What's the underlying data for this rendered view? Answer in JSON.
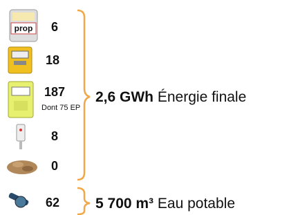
{
  "items": [
    {
      "value": 6,
      "icon_label": "prop"
    },
    {
      "value": 18
    },
    {
      "value": 187,
      "note": "Dont 75 EP"
    },
    {
      "value": 8
    },
    {
      "value": 0
    },
    {
      "value": 62
    }
  ],
  "energy": {
    "amount": "2,6 GWh",
    "label": "Énergie finale"
  },
  "water": {
    "amount": "5 700 m³",
    "label": "Eau potable"
  }
}
